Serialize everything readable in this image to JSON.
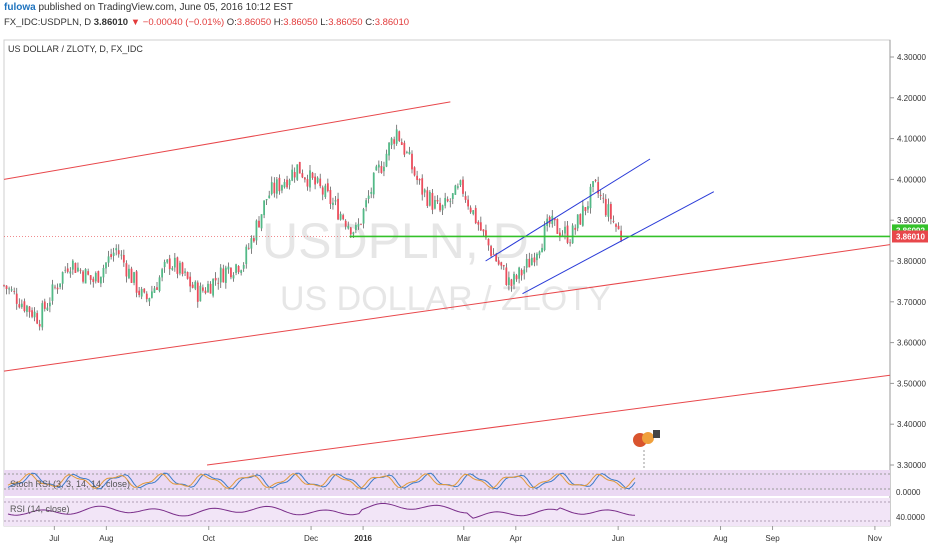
{
  "header": {
    "author": "fulowa",
    "published_text": "published on TradingView.com, June 05, 2016 10:12 EST",
    "symbol": "FX_IDC:USDPLN, D",
    "last": "3.86010",
    "change": "−0.00040 (−0.01%)",
    "open_label": "O:",
    "open": "3.86050",
    "high_label": "H:",
    "high": "3.86050",
    "low_label": "L:",
    "low": "3.86050",
    "close_label": "C:",
    "close": "3.86010"
  },
  "chart_title": "US DOLLAR / ZLOTY, D, FX_IDC",
  "watermark": {
    "symbol": "USDPLN, D",
    "name": "US DOLLAR / ZLOTY"
  },
  "colors": {
    "up": "#53b987",
    "down": "#eb4d5c",
    "red_channel": "#e8474b",
    "blue_channel": "#2a3bd8",
    "support": "#34c12a",
    "stoch_bg": "#ebd9f3",
    "rsi_bg": "#f2e5f7",
    "rsi_line": "#7a2e8a"
  },
  "chart_data": {
    "type": "candlestick",
    "title": "US DOLLAR / ZLOTY, D, FX_IDC",
    "y_ticks": [
      "4.30000",
      "4.20000",
      "4.10000",
      "4.00000",
      "3.90000",
      "3.80000",
      "3.70000",
      "3.60000",
      "3.50000",
      "3.40000",
      "3.30000"
    ],
    "ylim": [
      3.28,
      4.32
    ],
    "x_tick_labels": [
      "Jul",
      "Aug",
      "Oct",
      "Dec",
      "2016",
      "Mar",
      "Apr",
      "Jun",
      "Aug",
      "Sep",
      "Nov"
    ],
    "price_labels": [
      "3.86092",
      "3.86010"
    ],
    "support_level": 3.8601,
    "series": [
      {
        "date": "2015-06-01",
        "close": 3.74
      },
      {
        "date": "2015-06-22",
        "close": 3.66
      },
      {
        "date": "2015-07-10",
        "close": 3.8
      },
      {
        "date": "2015-07-24",
        "close": 3.75
      },
      {
        "date": "2015-08-07",
        "close": 3.83
      },
      {
        "date": "2015-08-24",
        "close": 3.7
      },
      {
        "date": "2015-09-08",
        "close": 3.8
      },
      {
        "date": "2015-09-25",
        "close": 3.72
      },
      {
        "date": "2015-10-12",
        "close": 3.78
      },
      {
        "date": "2015-10-22",
        "close": 3.8
      },
      {
        "date": "2015-11-05",
        "close": 3.96
      },
      {
        "date": "2015-11-23",
        "close": 4.03
      },
      {
        "date": "2015-12-10",
        "close": 3.96
      },
      {
        "date": "2015-12-28",
        "close": 3.87
      },
      {
        "date": "2016-01-08",
        "close": 4.0
      },
      {
        "date": "2016-01-21",
        "close": 4.12
      },
      {
        "date": "2016-02-04",
        "close": 3.98
      },
      {
        "date": "2016-02-16",
        "close": 3.92
      },
      {
        "date": "2016-02-29",
        "close": 3.98
      },
      {
        "date": "2016-03-14",
        "close": 3.85
      },
      {
        "date": "2016-03-29",
        "close": 3.74
      },
      {
        "date": "2016-04-08",
        "close": 3.79
      },
      {
        "date": "2016-04-21",
        "close": 3.89
      },
      {
        "date": "2016-05-04",
        "close": 3.86
      },
      {
        "date": "2016-05-18",
        "close": 3.98
      },
      {
        "date": "2016-06-03",
        "close": 3.86
      }
    ],
    "channels": {
      "red_upper": [
        [
          "2015-06-01",
          4.0
        ],
        [
          "2016-02-22",
          4.19
        ]
      ],
      "red_middle": [
        [
          "2015-06-01",
          3.53
        ],
        [
          "2016-11-10",
          3.84
        ]
      ],
      "red_lower": [
        [
          "2015-09-30",
          3.3
        ],
        [
          "2016-11-10",
          3.52
        ]
      ],
      "blue_upper": [
        [
          "2016-03-14",
          3.8
        ],
        [
          "2016-06-20",
          4.05
        ]
      ],
      "blue_lower": [
        [
          "2016-04-05",
          3.72
        ],
        [
          "2016-07-28",
          3.97
        ]
      ]
    },
    "indicators": [
      {
        "label": "Stoch RSI (3, 3, 14, 14, close)",
        "value": "0.0000"
      },
      {
        "label": "RSI (14, close)",
        "value": "40.0000"
      }
    ]
  }
}
